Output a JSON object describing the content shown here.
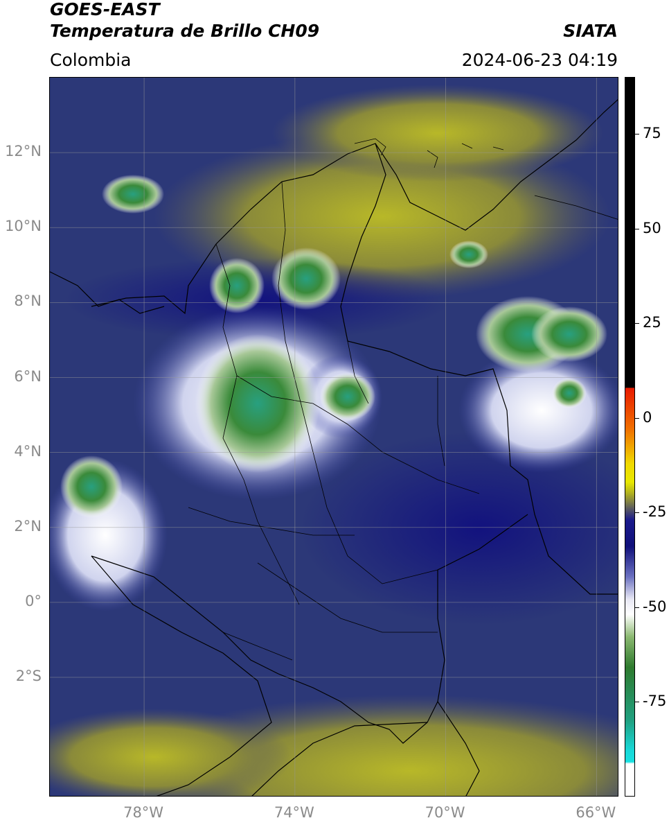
{
  "header": {
    "satellite": "GOES-EAST",
    "product": "Temperatura de Brillo CH09",
    "brand": "SIATA",
    "region": "Colombia",
    "timestamp": "2024-06-23 04:19"
  },
  "map": {
    "extent": {
      "lon": [
        -80.5,
        -65.4
      ],
      "lat": [
        -5.2,
        14.0
      ]
    },
    "lat_ticks": [
      {
        "value": 12,
        "label": "12°N"
      },
      {
        "value": 10,
        "label": "10°N"
      },
      {
        "value": 8,
        "label": "8°N"
      },
      {
        "value": 6,
        "label": "6°N"
      },
      {
        "value": 4,
        "label": "4°N"
      },
      {
        "value": 2,
        "label": "2°N"
      },
      {
        "value": 0,
        "label": "0°"
      },
      {
        "value": -2,
        "label": "2°S"
      }
    ],
    "lon_ticks": [
      {
        "value": -78,
        "label": "78°W"
      },
      {
        "value": -74,
        "label": "74°W"
      },
      {
        "value": -70,
        "label": "70°W"
      },
      {
        "value": -66,
        "label": "66°W"
      }
    ],
    "gridlines": true,
    "background_color": "#2a3a7a"
  },
  "colorbar": {
    "range": [
      -100,
      100
    ],
    "ticks": [
      {
        "value": 75,
        "label": "75"
      },
      {
        "value": 50,
        "label": "50"
      },
      {
        "value": 25,
        "label": "25"
      },
      {
        "value": 0,
        "label": "0"
      },
      {
        "value": -25,
        "label": "-25"
      },
      {
        "value": -50,
        "label": "-50"
      },
      {
        "value": -75,
        "label": "-75"
      }
    ],
    "stops": [
      {
        "value": 90,
        "color": "#000000"
      },
      {
        "value": 8,
        "color": "#000000"
      },
      {
        "value": 7.9,
        "color": "#e81a00"
      },
      {
        "value": -3,
        "color": "#f07000"
      },
      {
        "value": -12,
        "color": "#f0d800"
      },
      {
        "value": -17,
        "color": "#e8e800"
      },
      {
        "value": -20,
        "color": "#b0b020"
      },
      {
        "value": -24,
        "color": "#5a5a60"
      },
      {
        "value": -27,
        "color": "#1a1a8c"
      },
      {
        "value": -34,
        "color": "#10107a"
      },
      {
        "value": -42,
        "color": "#6a70c0"
      },
      {
        "value": -48,
        "color": "#e8e8f4"
      },
      {
        "value": -52,
        "color": "#ffffff"
      },
      {
        "value": -58,
        "color": "#8ab870"
      },
      {
        "value": -66,
        "color": "#2e7a2e"
      },
      {
        "value": -80,
        "color": "#20a080"
      },
      {
        "value": -88,
        "color": "#18d8d8"
      },
      {
        "value": -91,
        "color": "#18e0e0"
      },
      {
        "value": -91.5,
        "color": "#ffffff"
      },
      {
        "value": -100,
        "color": "#ffffff"
      }
    ]
  }
}
